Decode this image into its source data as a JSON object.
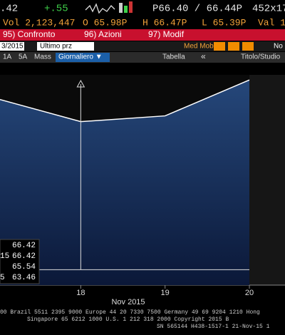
{
  "header": {
    "last": ".42",
    "change": "+.55",
    "bid_ask": "P66.40 / 66.44P",
    "size": "452x17",
    "volume": "Vol 2,123,447",
    "open": "O 65.98P",
    "high": "H 66.47P",
    "low": "L 65.39P",
    "value": "Val 1"
  },
  "toolbar": {
    "actions": [
      "95) Confronto",
      "96) Azioni",
      "97) Modif"
    ],
    "date": "3/2015",
    "field": "Ultimo prz",
    "study": "Med Mob",
    "more": "No",
    "periods": [
      "1A",
      "5A",
      "Mass"
    ],
    "frequency": "Giornaliero ▼",
    "table": "Tabella",
    "back": "«",
    "title_study": "Titolo/Studio"
  },
  "chart_data": {
    "type": "line",
    "categories": [
      null,
      "18",
      "19",
      "20"
    ],
    "x_label": "Nov 2015",
    "series": [
      {
        "color": "#ffffff",
        "values": [
          66.13,
          65.77,
          65.86,
          66.42
        ]
      }
    ],
    "ylim": [
      63.22,
      66.5
    ],
    "stats": [
      {
        "value": 66.42
      },
      {
        "label": "15",
        "value": 66.42
      },
      {
        "value": 65.54
      },
      {
        "label": "5",
        "value": 63.46
      }
    ]
  },
  "footer": [
    "00 Brazil 5511 2395 9000 Europe 44 20 7330 7500 Germany 49 69 9204 1210 Hong",
    "Singapore 65 6212 1000     U.S. 1 212 318 2000          Copyright 2015 B",
    "SN 565144 H438-1517-1 21-Nov-15 1"
  ]
}
